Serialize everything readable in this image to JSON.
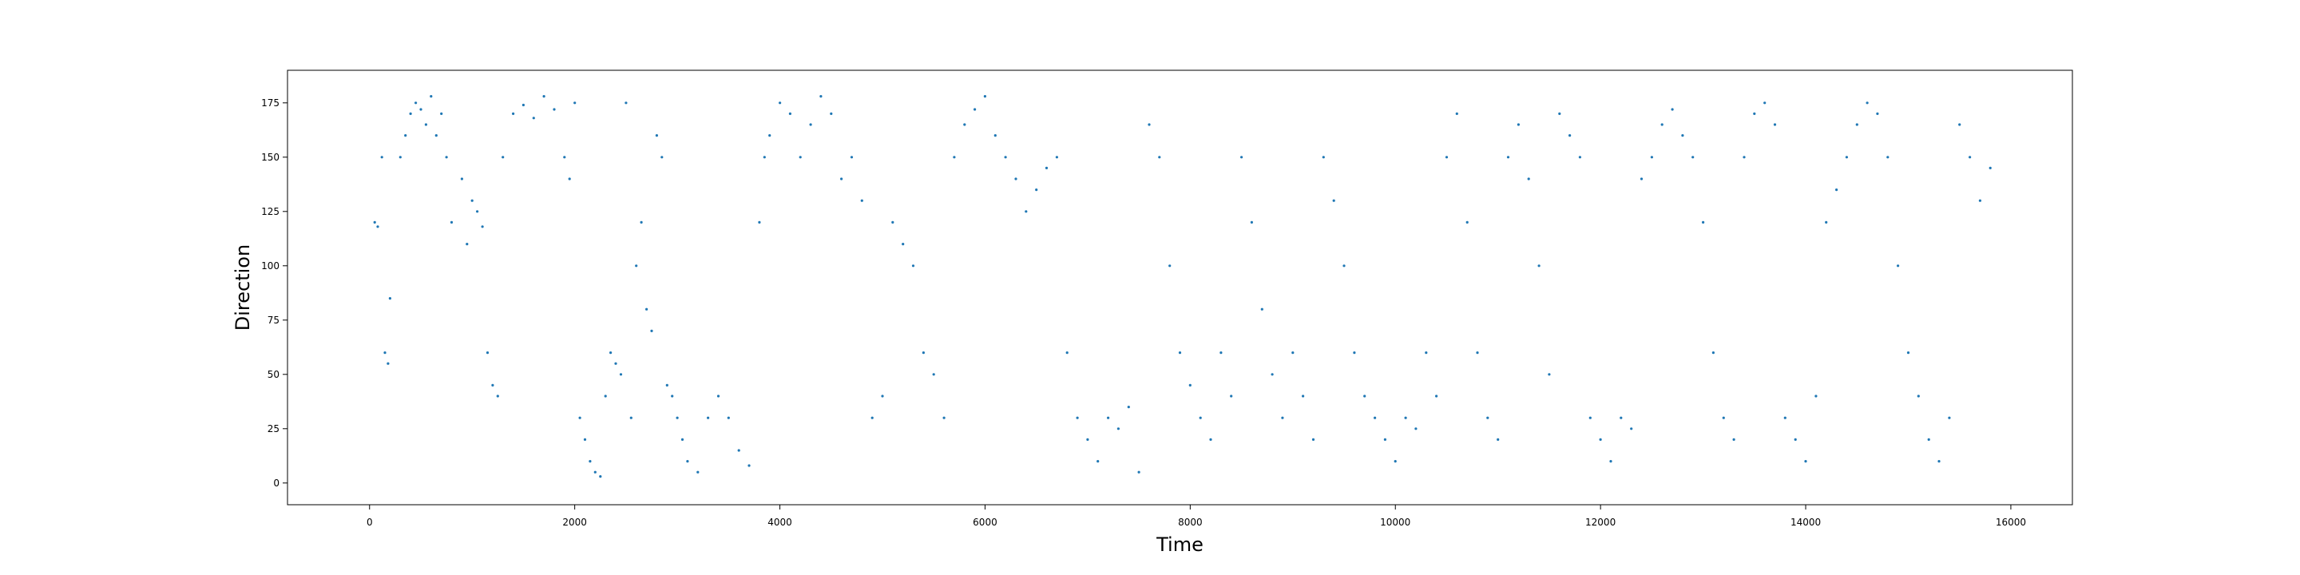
{
  "chart_data": {
    "type": "scatter",
    "title": "",
    "xlabel": "Time",
    "ylabel": "Direction",
    "xlim": [
      -800,
      16600
    ],
    "ylim": [
      -10,
      190
    ],
    "x_ticks": [
      0,
      2000,
      4000,
      6000,
      8000,
      10000,
      12000,
      14000,
      16000
    ],
    "y_ticks": [
      0,
      25,
      50,
      75,
      100,
      125,
      150,
      175
    ],
    "x_tick_labels": [
      "0",
      "2000",
      "4000",
      "6000",
      "8000",
      "10000",
      "12000",
      "14000",
      "16000"
    ],
    "y_tick_labels": [
      "0",
      "25",
      "50",
      "75",
      "100",
      "125",
      "150",
      "175"
    ],
    "grid": false,
    "legend": "none",
    "marker_color": "#1f77b4",
    "series": [
      {
        "points": [
          [
            50,
            120
          ],
          [
            80,
            118
          ],
          [
            120,
            150
          ],
          [
            150,
            60
          ],
          [
            180,
            55
          ],
          [
            200,
            85
          ],
          [
            300,
            150
          ],
          [
            350,
            160
          ],
          [
            400,
            170
          ],
          [
            450,
            175
          ],
          [
            500,
            172
          ],
          [
            550,
            165
          ],
          [
            600,
            178
          ],
          [
            650,
            160
          ],
          [
            700,
            170
          ],
          [
            750,
            150
          ],
          [
            800,
            120
          ],
          [
            900,
            140
          ],
          [
            950,
            110
          ],
          [
            1000,
            130
          ],
          [
            1050,
            125
          ],
          [
            1100,
            118
          ],
          [
            1150,
            60
          ],
          [
            1200,
            45
          ],
          [
            1250,
            40
          ],
          [
            1300,
            150
          ],
          [
            1400,
            170
          ],
          [
            1500,
            174
          ],
          [
            1600,
            168
          ],
          [
            1700,
            178
          ],
          [
            1800,
            172
          ],
          [
            1900,
            150
          ],
          [
            1950,
            140
          ],
          [
            2000,
            175
          ],
          [
            2050,
            30
          ],
          [
            2100,
            20
          ],
          [
            2150,
            10
          ],
          [
            2200,
            5
          ],
          [
            2250,
            3
          ],
          [
            2300,
            40
          ],
          [
            2350,
            60
          ],
          [
            2400,
            55
          ],
          [
            2450,
            50
          ],
          [
            2500,
            175
          ],
          [
            2550,
            30
          ],
          [
            2600,
            100
          ],
          [
            2650,
            120
          ],
          [
            2700,
            80
          ],
          [
            2750,
            70
          ],
          [
            2800,
            160
          ],
          [
            2850,
            150
          ],
          [
            2900,
            45
          ],
          [
            2950,
            40
          ],
          [
            3000,
            30
          ],
          [
            3050,
            20
          ],
          [
            3100,
            10
          ],
          [
            3200,
            5
          ],
          [
            3300,
            30
          ],
          [
            3400,
            40
          ],
          [
            3500,
            30
          ],
          [
            3600,
            15
          ],
          [
            3700,
            8
          ],
          [
            3800,
            120
          ],
          [
            3850,
            150
          ],
          [
            3900,
            160
          ],
          [
            4000,
            175
          ],
          [
            4100,
            170
          ],
          [
            4200,
            150
          ],
          [
            4300,
            165
          ],
          [
            4400,
            178
          ],
          [
            4500,
            170
          ],
          [
            4600,
            140
          ],
          [
            4700,
            150
          ],
          [
            4800,
            130
          ],
          [
            4900,
            30
          ],
          [
            5000,
            40
          ],
          [
            5100,
            120
          ],
          [
            5200,
            110
          ],
          [
            5300,
            100
          ],
          [
            5400,
            60
          ],
          [
            5500,
            50
          ],
          [
            5600,
            30
          ],
          [
            5700,
            150
          ],
          [
            5800,
            165
          ],
          [
            5900,
            172
          ],
          [
            6000,
            178
          ],
          [
            6100,
            160
          ],
          [
            6200,
            150
          ],
          [
            6300,
            140
          ],
          [
            6400,
            125
          ],
          [
            6500,
            135
          ],
          [
            6600,
            145
          ],
          [
            6700,
            150
          ],
          [
            6800,
            60
          ],
          [
            6900,
            30
          ],
          [
            7000,
            20
          ],
          [
            7100,
            10
          ],
          [
            7200,
            30
          ],
          [
            7300,
            25
          ],
          [
            7400,
            35
          ],
          [
            7500,
            5
          ],
          [
            7600,
            165
          ],
          [
            7700,
            150
          ],
          [
            7800,
            100
          ],
          [
            7900,
            60
          ],
          [
            8000,
            45
          ],
          [
            8100,
            30
          ],
          [
            8200,
            20
          ],
          [
            8300,
            60
          ],
          [
            8400,
            40
          ],
          [
            8500,
            150
          ],
          [
            8600,
            120
          ],
          [
            8700,
            80
          ],
          [
            8800,
            50
          ],
          [
            8900,
            30
          ],
          [
            9000,
            60
          ],
          [
            9100,
            40
          ],
          [
            9200,
            20
          ],
          [
            9300,
            150
          ],
          [
            9400,
            130
          ],
          [
            9500,
            100
          ],
          [
            9600,
            60
          ],
          [
            9700,
            40
          ],
          [
            9800,
            30
          ],
          [
            9900,
            20
          ],
          [
            10000,
            10
          ],
          [
            10100,
            30
          ],
          [
            10200,
            25
          ],
          [
            10300,
            60
          ],
          [
            10400,
            40
          ],
          [
            10500,
            150
          ],
          [
            10600,
            170
          ],
          [
            10700,
            120
          ],
          [
            10800,
            60
          ],
          [
            10900,
            30
          ],
          [
            11000,
            20
          ],
          [
            11100,
            150
          ],
          [
            11200,
            165
          ],
          [
            11300,
            140
          ],
          [
            11400,
            100
          ],
          [
            11500,
            50
          ],
          [
            11600,
            170
          ],
          [
            11700,
            160
          ],
          [
            11800,
            150
          ],
          [
            11900,
            30
          ],
          [
            12000,
            20
          ],
          [
            12100,
            10
          ],
          [
            12200,
            30
          ],
          [
            12300,
            25
          ],
          [
            12400,
            140
          ],
          [
            12500,
            150
          ],
          [
            12600,
            165
          ],
          [
            12700,
            172
          ],
          [
            12800,
            160
          ],
          [
            12900,
            150
          ],
          [
            13000,
            120
          ],
          [
            13100,
            60
          ],
          [
            13200,
            30
          ],
          [
            13300,
            20
          ],
          [
            13400,
            150
          ],
          [
            13500,
            170
          ],
          [
            13600,
            175
          ],
          [
            13700,
            165
          ],
          [
            13800,
            30
          ],
          [
            13900,
            20
          ],
          [
            14000,
            10
          ],
          [
            14100,
            40
          ],
          [
            14200,
            120
          ],
          [
            14300,
            135
          ],
          [
            14400,
            150
          ],
          [
            14500,
            165
          ],
          [
            14600,
            175
          ],
          [
            14700,
            170
          ],
          [
            14800,
            150
          ],
          [
            14900,
            100
          ],
          [
            15000,
            60
          ],
          [
            15100,
            40
          ],
          [
            15200,
            20
          ],
          [
            15300,
            10
          ],
          [
            15400,
            30
          ],
          [
            15500,
            165
          ],
          [
            15600,
            150
          ],
          [
            15700,
            130
          ],
          [
            15800,
            145
          ]
        ]
      }
    ]
  }
}
